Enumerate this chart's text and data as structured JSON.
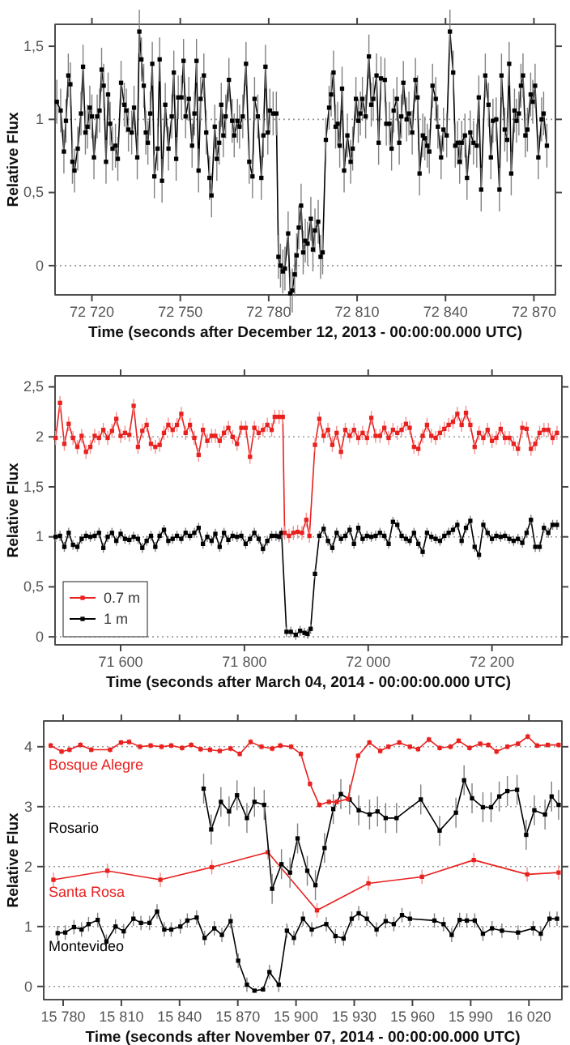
{
  "chart_data": [
    {
      "type": "line",
      "xlabel": "Time (seconds after December 12, 2013 - 00:00:00.000 UTC)",
      "ylabel": "Relative Flux",
      "xlim": [
        72707.5,
        72877.3
      ],
      "ylim": [
        -0.2,
        1.65
      ],
      "xticks": [
        {
          "value": 72720,
          "label": "72 720"
        },
        {
          "value": 72750,
          "label": "72 750"
        },
        {
          "value": 72780,
          "label": "72 780"
        },
        {
          "value": 72810,
          "label": "72 810"
        },
        {
          "value": 72840,
          "label": "72 840"
        },
        {
          "value": 72870,
          "label": "72 870"
        }
      ],
      "yticks": [
        0,
        {
          "value": 0.5,
          "label": "0,5"
        },
        1,
        {
          "value": 1.5,
          "label": "1,5"
        }
      ],
      "ref_lines": [
        {
          "axis": "y",
          "value": 0,
          "color": "#999999",
          "line_style": "dotted"
        },
        {
          "axis": "y",
          "value": 1,
          "color": "#999999",
          "line_style": "dotted"
        }
      ],
      "marker": "square",
      "legend": false,
      "series": [
        {
          "color": "#000000",
          "x": [
            72708.1,
            72709.4,
            72710.5,
            72711.2,
            72712,
            72712.7,
            72713.4,
            72714.1,
            72715.2,
            72716.3,
            72717,
            72717.8,
            72718.5,
            72719.3,
            72720,
            72720.7,
            72721.8,
            72722.6,
            72723.3,
            72724,
            72724.8,
            72725.5,
            72726.2,
            72727,
            72728,
            72728.8,
            72729.9,
            72731,
            72731.7,
            72732.4,
            72733.5,
            72734.3,
            72735.4,
            72736.1,
            72736.8,
            72737.6,
            72738.3,
            72739,
            72739.8,
            72740.5,
            72741.2,
            72742.3,
            72743,
            72743.8,
            72744.9,
            72746,
            72747.1,
            72747.8,
            72748.6,
            72749.3,
            72750.4,
            72751.1,
            72751.8,
            72752.9,
            72754,
            72754.8,
            72755.5,
            72756.2,
            72756.9,
            72758,
            72758.8,
            72759.9,
            72760.6,
            72761.7,
            72762.4,
            72763.2,
            72763.9,
            72764.6,
            72765.4,
            72766.5,
            72767.6,
            72768.3,
            72769.4,
            72770.1,
            72771.2,
            72772.3,
            72773.4,
            72774.5,
            72775.2,
            72776.3,
            72777.5,
            72778.2,
            72778.9,
            72779.7,
            72780.4,
            72781.5,
            72782.6,
            72783.3,
            72784,
            72784.8,
            72785.5,
            72786.6,
            72787.3,
            72788,
            72788.8,
            72789.5,
            72790.2,
            72791,
            72791.7,
            72792.4,
            72793.2,
            72794.3,
            72795,
            72795.7,
            72796.8,
            72797.6,
            72798.3,
            72799.4,
            72800.5,
            72801.2,
            72802,
            72802.7,
            72803.4,
            72804.1,
            72804.9,
            72805.6,
            72806.7,
            72807.8,
            72808.5,
            72809.6,
            72810.4,
            72811.1,
            72811.8,
            72812.9,
            72814,
            72814.8,
            72815.5,
            72816.6,
            72817.3,
            72818.1,
            72819.4,
            72819.9,
            72821,
            72821.7,
            72822.4,
            72823.5,
            72824.3,
            72825,
            72825.7,
            72826.8,
            72827.6,
            72828.7,
            72829.8,
            72830.5,
            72831.2,
            72832.3,
            72833,
            72833.8,
            72834.5,
            72835.6,
            72836.7,
            72837.4,
            72838.5,
            72839.3,
            72840.4,
            72841.5,
            72842.6,
            72843.3,
            72844.1,
            72844.8,
            72845.5,
            72846.6,
            72847.3,
            72848.4,
            72849.5,
            72850.6,
            72851.3,
            72852.1,
            72853.5,
            72854.6,
            72855.4,
            72856.1,
            72857.2,
            72858.3,
            72859,
            72860.1,
            72860.9,
            72861.6,
            72862.3,
            72863.4,
            72864.1,
            72864.9,
            72865.6,
            72866.3,
            72867.1,
            72867.8,
            72868.9,
            72869.6,
            72870.4,
            72871.5,
            72872.6,
            72873.3,
            72874.4
          ],
          "values": [
            1.12,
            1.06,
            0.78,
            0.99,
            1.3,
            1.24,
            0.71,
            0.65,
            0.8,
            1.04,
            1.36,
            0.91,
            0.95,
            1.08,
            1.02,
            0.74,
            1.02,
            1.06,
            1.34,
            1.23,
            0.71,
            1.17,
            0.97,
            0.8,
            0.82,
            0.73,
            1.25,
            1.1,
            1.06,
            0.93,
            0.91,
            1.08,
            0.74,
            1.6,
            1.41,
            1.23,
            0.91,
            0.84,
            1.04,
            1.38,
            0.61,
            0.8,
            1.41,
            0.58,
            1.1,
            0.8,
            1.02,
            1.32,
            0.73,
            1.15,
            1.15,
            1.4,
            1.02,
            1.14,
            0.82,
            1.04,
            1.4,
            0.65,
            1.14,
            1.3,
            0.91,
            0.6,
            0.48,
            0.95,
            0.73,
            0.84,
            1.1,
            0.89,
            1.02,
            1.27,
            0.99,
            0.89,
            0.99,
            0.95,
            1.02,
            1.38,
            0.71,
            0.61,
            1.14,
            1.02,
            0.6,
            0.89,
            1.36,
            0.91,
            1.06,
            1.04,
            1.04,
            0.06,
            0,
            -0.04,
            -0.02,
            0.22,
            -0.19,
            -0.17,
            -0.06,
            0.07,
            0.26,
            0.41,
            0.09,
            0.17,
            0.15,
            0.32,
            0.11,
            0.24,
            0.3,
            0.06,
            0.09,
            0.86,
            1.08,
            1.17,
            1.32,
            0.95,
            0.97,
            0.82,
            1.21,
            0.65,
            0.89,
            0.71,
            0.8,
            1.14,
            0.99,
            1.04,
            1.14,
            1.02,
            1.43,
            1.1,
            1.14,
            1.3,
            0.84,
            1.28,
            1.27,
            0.97,
            0.97,
            0.8,
            1.06,
            1.14,
            0.84,
            1.02,
            1.25,
            1,
            1.04,
            0.91,
            1.27,
            1.15,
            0.63,
            0.89,
            0.87,
            0.82,
            0.78,
            1.23,
            1.14,
            0.95,
            0.74,
            0.93,
            0.89,
            1.6,
            1.32,
            0.82,
            0.84,
            0.71,
            0.84,
            0.89,
            0.6,
            0.91,
            0.84,
            0.82,
            1.15,
            0.52,
            1.3,
            1.1,
            0.74,
            0.99,
            1,
            0.52,
            1.3,
            0.93,
            0.86,
            1.38,
            0.63,
            1.06,
            0.99,
            1.04,
            1.23,
            1.3,
            0.89,
            0.93,
            1.17,
            1.12,
            1.23,
            0.74,
            1,
            1.04,
            0.82
          ],
          "errors": [
            0.15,
            0.15,
            0.15,
            0.15,
            0.15,
            0.15,
            0.15,
            0.15,
            0.15,
            0.15,
            0.15,
            0.15,
            0.15,
            0.15,
            0.15,
            0.15,
            0.15,
            0.15,
            0.15,
            0.15,
            0.15,
            0.15,
            0.15,
            0.15,
            0.15,
            0.15,
            0.15,
            0.15,
            0.15,
            0.15,
            0.15,
            0.15,
            0.15,
            0.15,
            0.15,
            0.15,
            0.15,
            0.15,
            0.15,
            0.15,
            0.15,
            0.15,
            0.15,
            0.15,
            0.15,
            0.15,
            0.15,
            0.15,
            0.15,
            0.15,
            0.15,
            0.15,
            0.15,
            0.15,
            0.15,
            0.15,
            0.15,
            0.15,
            0.15,
            0.15,
            0.15,
            0.15,
            0.15,
            0.15,
            0.15,
            0.15,
            0.15,
            0.15,
            0.15,
            0.15,
            0.15,
            0.15,
            0.15,
            0.15,
            0.15,
            0.15,
            0.15,
            0.15,
            0.15,
            0.15,
            0.15,
            0.15,
            0.15,
            0.15,
            0.15,
            0.15,
            0.15,
            0.15,
            0.15,
            0.15,
            0.15,
            0.15,
            0.15,
            0.15,
            0.15,
            0.15,
            0.15,
            0.15,
            0.15,
            0.15,
            0.15,
            0.15,
            0.15,
            0.15,
            0.15,
            0.15,
            0.15,
            0.15,
            0.15,
            0.15,
            0.15,
            0.15,
            0.15,
            0.15,
            0.15,
            0.15,
            0.15,
            0.15,
            0.15,
            0.15,
            0.15,
            0.15,
            0.15,
            0.15,
            0.15,
            0.15,
            0.15,
            0.15,
            0.15,
            0.15,
            0.15,
            0.15,
            0.15,
            0.15,
            0.15,
            0.15,
            0.15,
            0.15,
            0.15,
            0.15,
            0.15,
            0.15,
            0.15,
            0.15,
            0.15,
            0.15,
            0.15,
            0.15,
            0.15,
            0.15,
            0.15,
            0.15,
            0.15,
            0.15,
            0.15,
            0.15,
            0.15,
            0.15,
            0.15,
            0.15,
            0.15,
            0.15,
            0.15,
            0.15,
            0.15,
            0.15,
            0.15,
            0.15,
            0.15,
            0.15,
            0.15,
            0.15,
            0.15,
            0.15,
            0.15,
            0.15,
            0.15,
            0.15,
            0.15,
            0.15,
            0.15,
            0.15,
            0.15,
            0.15,
            0.15,
            0.15,
            0.15,
            0.15,
            0.15,
            0.15,
            0.15,
            0.15,
            0.15
          ]
        }
      ]
    },
    {
      "type": "line",
      "xlabel": "Time (seconds after March 04, 2014 - 00:00:00.000 UTC)",
      "ylabel": "Relative Flux",
      "xlim": [
        71494,
        72313
      ],
      "ylim": [
        -0.08,
        2.61
      ],
      "xticks": [
        {
          "value": 71600,
          "label": "71 600"
        },
        {
          "value": 71800,
          "label": "71 800"
        },
        {
          "value": 72000,
          "label": "72 000"
        },
        {
          "value": 72200,
          "label": "72 200"
        }
      ],
      "yticks": [
        0,
        {
          "value": 0.5,
          "label": "0,5"
        },
        1,
        {
          "value": 1.5,
          "label": "1,5"
        },
        2,
        {
          "value": 2.5,
          "label": "2,5"
        }
      ],
      "ref_lines": [
        {
          "axis": "y",
          "value": 0,
          "color": "#999999",
          "line_style": "dotted"
        },
        {
          "axis": "y",
          "value": 1,
          "color": "#999999",
          "line_style": "dotted"
        },
        {
          "axis": "y",
          "value": 2,
          "color": "#999999",
          "line_style": "dotted"
        }
      ],
      "marker": "square",
      "legend": "bottom left",
      "series": [
        {
          "name": "0.7 m",
          "color": "#e8211f",
          "x": [
            71495,
            71502,
            71509,
            71516,
            71523,
            71530,
            71537,
            71544,
            71551,
            71558,
            71565,
            71572,
            71579,
            71586,
            71593,
            71600,
            71607,
            71614,
            71621,
            71628,
            71635,
            71642,
            71649,
            71656,
            71663,
            71670,
            71677,
            71684,
            71691,
            71698,
            71705,
            71712,
            71719,
            71726,
            71733,
            71740,
            71747,
            71753,
            71760,
            71767,
            71774,
            71781,
            71788,
            71795,
            71802,
            71809,
            71816,
            71823,
            71830,
            71837,
            71844,
            71849,
            71856,
            71862,
            71865,
            71872,
            71879,
            71886,
            71893,
            71900,
            71905,
            71914,
            71921,
            71928,
            71935,
            71942,
            71949,
            71956,
            71963,
            71970,
            71977,
            71984,
            71991,
            71998,
            72005,
            72012,
            72019,
            72026,
            72033,
            72040,
            72047,
            72054,
            72061,
            72067,
            72074,
            72081,
            72088,
            72095,
            72102,
            72109,
            72116,
            72123,
            72130,
            72137,
            72144,
            72151,
            72158,
            72165,
            72172,
            72179,
            72186,
            72193,
            72200,
            72207,
            72214,
            72221,
            72228,
            72235,
            72242,
            72249,
            72256,
            72263,
            72270,
            72277,
            72284,
            72291,
            72298,
            72305
          ],
          "values": [
            1.99,
            2.34,
            1.93,
            2.13,
            1.99,
            1.9,
            2.01,
            1.85,
            1.9,
            2.01,
            1.99,
            2.07,
            1.99,
            2.06,
            2.18,
            2.01,
            2.04,
            2.02,
            2.31,
            1.9,
            2.06,
            2.12,
            1.93,
            1.9,
            1.92,
            2.04,
            2.12,
            2.07,
            2.12,
            2.23,
            2.04,
            2.12,
            1.99,
            1.82,
            2.07,
            1.96,
            2.01,
            2.01,
            1.96,
            2.04,
            2.09,
            2,
            1.93,
            2.09,
            2.09,
            1.8,
            2.09,
            2.04,
            2.07,
            2.12,
            2.07,
            2.2,
            2.2,
            2.2,
            1.04,
            1.01,
            1.04,
            1.05,
            1.04,
            1.17,
            1.01,
            1.92,
            2.18,
            2.01,
            2.07,
            1.92,
            2.04,
            1.85,
            2.07,
            2.01,
            2.07,
            1.99,
            2.04,
            1.99,
            2.19,
            2.01,
            2.01,
            2.09,
            1.99,
            2.07,
            2.04,
            2.07,
            2.13,
            2.09,
            1.9,
            1.88,
            2.01,
            2.12,
            2.01,
            1.99,
            2.04,
            2.08,
            2.12,
            2.15,
            2.23,
            2.12,
            2.24,
            2.12,
            1.9,
            2.04,
            1.99,
            2.07,
            1.96,
            1.99,
            2.08,
            1.99,
            1.99,
            1.93,
            1.88,
            2.09,
            2.08,
            1.88,
            1.93,
            2.04,
            2.07,
            2.07,
            1.99,
            2.04
          ],
          "errors": [
            0.07,
            0.07,
            0.07,
            0.07,
            0.07,
            0.07,
            0.07,
            0.07,
            0.07,
            0.07,
            0.07,
            0.07,
            0.07,
            0.07,
            0.07,
            0.07,
            0.07,
            0.07,
            0.07,
            0.07,
            0.07,
            0.07,
            0.07,
            0.07,
            0.07,
            0.07,
            0.07,
            0.07,
            0.07,
            0.07,
            0.07,
            0.07,
            0.07,
            0.07,
            0.07,
            0.07,
            0.07,
            0.07,
            0.07,
            0.07,
            0.07,
            0.07,
            0.07,
            0.07,
            0.07,
            0.07,
            0.07,
            0.07,
            0.07,
            0.07,
            0.07,
            0.07,
            0.07,
            0.07,
            0.07,
            0.07,
            0.07,
            0.07,
            0.07,
            0.07,
            0.07,
            0.07,
            0.07,
            0.07,
            0.07,
            0.07,
            0.07,
            0.07,
            0.07,
            0.07,
            0.07,
            0.07,
            0.07,
            0.07,
            0.07,
            0.07,
            0.07,
            0.07,
            0.07,
            0.07,
            0.07,
            0.07,
            0.07,
            0.07,
            0.07,
            0.07,
            0.07,
            0.07,
            0.07,
            0.07,
            0.07,
            0.07,
            0.07,
            0.07,
            0.07,
            0.07,
            0.07,
            0.07,
            0.07,
            0.07,
            0.07,
            0.07,
            0.07,
            0.07,
            0.07,
            0.07,
            0.07,
            0.07,
            0.07,
            0.07,
            0.07,
            0.07,
            0.07,
            0.07,
            0.07,
            0.07,
            0.07,
            0.07
          ]
        },
        {
          "name": "1 m",
          "color": "#000000",
          "x": [
            71495,
            71502,
            71509,
            71516,
            71523,
            71530,
            71537,
            71544,
            71551,
            71558,
            71565,
            71572,
            71579,
            71586,
            71593,
            71600,
            71607,
            71614,
            71621,
            71628,
            71635,
            71642,
            71649,
            71656,
            71663,
            71670,
            71677,
            71684,
            71691,
            71698,
            71705,
            71712,
            71719,
            71726,
            71733,
            71740,
            71747,
            71753,
            71760,
            71767,
            71774,
            71781,
            71788,
            71795,
            71802,
            71809,
            71816,
            71823,
            71830,
            71837,
            71844,
            71851,
            71856,
            71860,
            71868,
            71875,
            71883,
            71890,
            71897,
            71902,
            71907,
            71914,
            71921,
            71928,
            71935,
            71942,
            71949,
            71956,
            71963,
            71970,
            71977,
            71984,
            71991,
            71998,
            72005,
            72012,
            72019,
            72026,
            72033,
            72040,
            72047,
            72054,
            72061,
            72067,
            72074,
            72081,
            72088,
            72095,
            72102,
            72109,
            72116,
            72123,
            72130,
            72137,
            72144,
            72151,
            72158,
            72165,
            72172,
            72179,
            72186,
            72193,
            72200,
            72207,
            72214,
            72221,
            72228,
            72235,
            72242,
            72249,
            72256,
            72263,
            72270,
            72277,
            72284,
            72291,
            72298,
            72305
          ],
          "values": [
            1,
            1.01,
            0.9,
            1.04,
            0.92,
            0.9,
            0.98,
            1.01,
            1,
            1.01,
            1.04,
            0.89,
            1,
            1.04,
            0.96,
            1.03,
            0.98,
            0.97,
            1,
            0.98,
            0.89,
            0.96,
            1.01,
            0.9,
            1.01,
            1.07,
            0.96,
            0.98,
            1.01,
            0.98,
            1.04,
            1.01,
            1.04,
            1.09,
            0.93,
            1,
            0.96,
            1.03,
            0.9,
            1.04,
            0.97,
            1.01,
            1,
            1.01,
            0.93,
            0.98,
            1.04,
            0.98,
            0.88,
            0.96,
            1.01,
            1.01,
            1,
            1.04,
            0.05,
            0.05,
            0.02,
            0.06,
            0.04,
            0.03,
            0.08,
            0.63,
            1.01,
            1.08,
            0.96,
            0.89,
            1.04,
            0.98,
            1.01,
            1.07,
            0.93,
            1.09,
            0.98,
            1.01,
            1,
            1.01,
            1.04,
            1.01,
            0.93,
            1.15,
            1.12,
            1.01,
            0.98,
            0.96,
            1.04,
            0.93,
            0.85,
            1.04,
            1,
            0.98,
            0.96,
            1.01,
            1.04,
            1.07,
            1.12,
            0.96,
            1.09,
            1.16,
            0.9,
            0.82,
            1.12,
            1.04,
            0.98,
            1.01,
            1,
            1.01,
            0.98,
            0.96,
            0.98,
            0.94,
            1.04,
            1.17,
            0.9,
            0.9,
            1.09,
            1.04,
            1.12,
            1.12
          ],
          "errors": [
            0.05,
            0.05,
            0.05,
            0.05,
            0.05,
            0.05,
            0.05,
            0.05,
            0.05,
            0.05,
            0.05,
            0.05,
            0.05,
            0.05,
            0.05,
            0.05,
            0.05,
            0.05,
            0.05,
            0.05,
            0.05,
            0.05,
            0.05,
            0.05,
            0.05,
            0.05,
            0.05,
            0.05,
            0.05,
            0.05,
            0.05,
            0.05,
            0.05,
            0.05,
            0.05,
            0.05,
            0.05,
            0.05,
            0.05,
            0.05,
            0.05,
            0.05,
            0.05,
            0.05,
            0.05,
            0.05,
            0.05,
            0.05,
            0.05,
            0.05,
            0.05,
            0.05,
            0.05,
            0.05,
            0.05,
            0.05,
            0.05,
            0.05,
            0.05,
            0.05,
            0.05,
            0.05,
            0.05,
            0.05,
            0.05,
            0.05,
            0.05,
            0.05,
            0.05,
            0.05,
            0.05,
            0.05,
            0.05,
            0.05,
            0.05,
            0.05,
            0.05,
            0.05,
            0.05,
            0.05,
            0.05,
            0.05,
            0.05,
            0.05,
            0.05,
            0.05,
            0.05,
            0.05,
            0.05,
            0.05,
            0.05,
            0.05,
            0.05,
            0.05,
            0.05,
            0.05,
            0.05,
            0.05,
            0.05,
            0.05,
            0.05,
            0.05,
            0.05,
            0.05,
            0.05,
            0.05,
            0.05,
            0.05,
            0.05,
            0.05,
            0.05,
            0.05,
            0.05,
            0.05,
            0.05,
            0.05,
            0.05,
            0.05
          ]
        }
      ]
    },
    {
      "type": "line",
      "xlabel": "Time (seconds after November 07, 2014 - 00:00:00.000 UTC)",
      "ylabel": "Relative Flux",
      "xlim": [
        15770,
        16037
      ],
      "ylim": [
        -0.22,
        4.43
      ],
      "xticks": [
        {
          "value": 15780,
          "label": "15 780"
        },
        {
          "value": 15810,
          "label": "15 810"
        },
        {
          "value": 15840,
          "label": "15 840"
        },
        {
          "value": 15870,
          "label": "15 870"
        },
        {
          "value": 15900,
          "label": "15 900"
        },
        {
          "value": 15930,
          "label": "15 930"
        },
        {
          "value": 15960,
          "label": "15 960"
        },
        {
          "value": 15990,
          "label": "15 990"
        },
        {
          "value": 16020,
          "label": "16 020"
        }
      ],
      "yticks": [
        0,
        1,
        2,
        3,
        4
      ],
      "ref_lines": [
        {
          "axis": "y",
          "value": 0,
          "color": "#999999",
          "line_style": "dotted"
        },
        {
          "axis": "y",
          "value": 1,
          "color": "#999999",
          "line_style": "dotted"
        },
        {
          "axis": "y",
          "value": 2,
          "color": "#999999",
          "line_style": "dotted"
        },
        {
          "axis": "y",
          "value": 3,
          "color": "#999999",
          "line_style": "dotted"
        },
        {
          "axis": "y",
          "value": 4,
          "color": "#999999",
          "line_style": "dotted"
        }
      ],
      "marker": "square",
      "legend": false,
      "series": [
        {
          "name": "Bosque Alegre",
          "color": "#e8211f",
          "x": [
            15773.6,
            15779.2,
            15783.3,
            15788.9,
            15794.5,
            15804.2,
            15809.8,
            15814,
            15819.6,
            15825.1,
            15830.7,
            15835.7,
            15841.3,
            15846,
            15850.8,
            15855.7,
            15860.7,
            15866.3,
            15871,
            15876.6,
            15882.2,
            15887.7,
            15891.9,
            15897.5,
            15902.5,
            15907.2,
            15912,
            15917,
            15921,
            15926.7,
            15932,
            15937.8,
            15943.4,
            15947.6,
            15953.2,
            15958.7,
            15962.9,
            15968.5,
            15974,
            15979.6,
            15983.8,
            15989.4,
            15994.9,
            15999.1,
            16003.3,
            16008.9,
            16014.4,
            16019.4,
            16024.2,
            16029.7,
            16035.3
          ],
          "values": [
            4.02,
            3.92,
            3.95,
            4.03,
            3.95,
            3.95,
            4.07,
            4.08,
            4,
            4.02,
            4,
            4.02,
            3.98,
            4.03,
            3.96,
            3.95,
            3.93,
            3.97,
            3.88,
            4.08,
            4,
            3.97,
            4.02,
            4,
            3.88,
            3.38,
            3.03,
            3.08,
            3.08,
            3.13,
            3.85,
            4.07,
            3.93,
            4,
            4.07,
            4,
            3.96,
            4.12,
            3.98,
            4,
            4.1,
            3.98,
            4.05,
            4.03,
            3.92,
            4,
            4.05,
            4.17,
            4.02,
            4.03,
            4.03
          ],
          "errors": [
            0.05,
            0.05,
            0.05,
            0.05,
            0.05,
            0.05,
            0.05,
            0.05,
            0.05,
            0.05,
            0.05,
            0.05,
            0.05,
            0.05,
            0.05,
            0.05,
            0.05,
            0.05,
            0.05,
            0.05,
            0.05,
            0.05,
            0.05,
            0.05,
            0.05,
            0.05,
            0.05,
            0.05,
            0.05,
            0.05,
            0.05,
            0.05,
            0.05,
            0.05,
            0.05,
            0.05,
            0.05,
            0.05,
            0.05,
            0.05,
            0.05,
            0.05,
            0.05,
            0.05,
            0.05,
            0.05,
            0.05,
            0.05,
            0.05,
            0.05,
            0.05
          ]
        },
        {
          "name": "Rosario",
          "color": "#000000",
          "x": [
            15852.4,
            15856.3,
            15861.3,
            15865.5,
            15869.6,
            15874.7,
            15878.6,
            15883.6,
            15887.7,
            15892.5,
            15896.9,
            15900.8,
            15905.8,
            15910,
            15914.7,
            15919.2,
            15923.1,
            15927.6,
            15932.3,
            15937.9,
            15942,
            15946.2,
            15951.8,
            15964.3,
            15974,
            15982.4,
            15986.6,
            15990.7,
            15996.3,
            16000.5,
            16004.7,
            16008.9,
            16013.9,
            16018.6,
            16022.8,
            16028.3,
            16031.7,
            16035.3
          ],
          "values": [
            3.3,
            2.62,
            3.08,
            2.92,
            3.19,
            2.81,
            3.08,
            3.03,
            1.63,
            2.04,
            1.9,
            2.47,
            1.93,
            1.69,
            2.31,
            2.96,
            3.21,
            3.12,
            2.94,
            2.87,
            2.92,
            2.81,
            2.81,
            3.12,
            2.6,
            2.9,
            3.44,
            3.14,
            2.99,
            2.99,
            3.17,
            3.26,
            3.28,
            2.53,
            2.94,
            2.87,
            3.17,
            3.03
          ],
          "errors": [
            0.25,
            0.25,
            0.25,
            0.25,
            0.25,
            0.25,
            0.25,
            0.25,
            0.25,
            0.25,
            0.25,
            0.25,
            0.25,
            0.25,
            0.25,
            0.25,
            0.25,
            0.25,
            0.25,
            0.25,
            0.25,
            0.25,
            0.25,
            0.25,
            0.25,
            0.25,
            0.25,
            0.25,
            0.25,
            0.25,
            0.25,
            0.25,
            0.25,
            0.25,
            0.25,
            0.25,
            0.25,
            0.25
          ]
        },
        {
          "name": "Santa Rosa",
          "color": "#e8211f",
          "x": [
            15775,
            15802.8,
            15830.1,
            15856.6,
            15885.5,
            15910.8,
            15937.3,
            15964.9,
            15991.6,
            16019.1,
            16035.3
          ],
          "values": [
            1.78,
            1.93,
            1.78,
            1.99,
            2.24,
            1.27,
            1.72,
            1.83,
            2.11,
            1.87,
            1.9
          ],
          "errors": [
            0.12,
            0.12,
            0.12,
            0.12,
            0.12,
            0.12,
            0.12,
            0.12,
            0.12,
            0.12,
            0.12
          ]
        },
        {
          "name": "Montevideo",
          "color": "#000000",
          "x": [
            15777.2,
            15781.1,
            15785.6,
            15789.5,
            15793.1,
            15797.8,
            15802.3,
            15807,
            15811.2,
            15816.2,
            15820.1,
            15824.5,
            15828.4,
            15832.1,
            15835.7,
            15840.4,
            15844,
            15848.8,
            15852.9,
            15857.9,
            15861.8,
            15866.3,
            15870.2,
            15874.7,
            15878.6,
            15883,
            15886.3,
            15891.1,
            15895.3,
            15898.9,
            15903.6,
            15908.1,
            15915.6,
            15920.3,
            15924.5,
            15928.7,
            15932.3,
            15936.5,
            15941.5,
            15946.2,
            15950.4,
            15954.6,
            15958.7,
            15971.3,
            15976,
            15980.2,
            15984.3,
            15988,
            15992.1,
            15996.3,
            16001,
            16006.1,
            16014.4,
            16022.2,
            16026.1,
            16030.6,
            16034.5
          ],
          "values": [
            0.89,
            0.9,
            0.99,
            0.95,
            1.04,
            1.11,
            0.75,
            1,
            0.92,
            1.13,
            1.06,
            1.06,
            1.25,
            0.95,
            0.95,
            1,
            1.1,
            1.15,
            0.81,
            0.97,
            0.86,
            1.09,
            0.43,
            0.03,
            -0.07,
            -0.05,
            0.24,
            0.03,
            0.93,
            0.81,
            1.13,
            0.95,
            1.04,
            0.84,
            0.8,
            1.13,
            1.22,
            1.13,
            0.95,
            1.09,
            1.04,
            1.19,
            1.13,
            1.1,
            1.04,
            0.86,
            1.11,
            1.1,
            1.1,
            0.88,
            0.97,
            0.93,
            0.9,
            0.97,
            0.88,
            1.13,
            1.13
          ],
          "errors": [
            0.12,
            0.12,
            0.12,
            0.12,
            0.12,
            0.12,
            0.12,
            0.12,
            0.12,
            0.12,
            0.12,
            0.12,
            0.12,
            0.12,
            0.12,
            0.12,
            0.12,
            0.12,
            0.12,
            0.12,
            0.12,
            0.12,
            0.12,
            0.12,
            null,
            null,
            0.12,
            0.12,
            0.12,
            0.12,
            0.12,
            0.12,
            0.12,
            0.12,
            0.12,
            0.12,
            0.12,
            0.12,
            0.12,
            0.12,
            0.12,
            0.12,
            0.12,
            0.12,
            0.12,
            0.12,
            0.12,
            0.12,
            0.12,
            0.12,
            0.12,
            0.12,
            0.12,
            0.12,
            0.12,
            0.12,
            0.12
          ]
        }
      ]
    }
  ]
}
